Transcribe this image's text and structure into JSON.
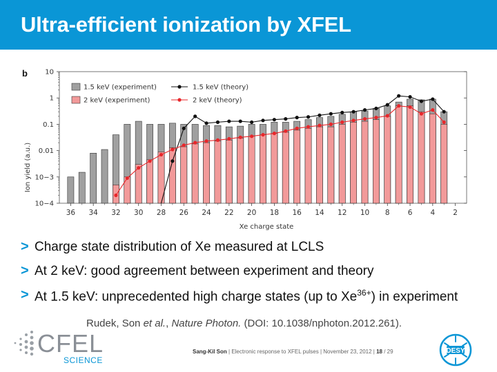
{
  "title": "Ultra-efficient ionization by XFEL",
  "chart_data": {
    "type": "bar",
    "panel_label": "b",
    "ylabel": "Ion yield (a.u.)",
    "xlabel": "Xe charge state",
    "yscale": "log",
    "ylim": [
      0.0001,
      10
    ],
    "xlim": [
      37,
      1
    ],
    "y_ticks": [
      0.0001,
      0.001,
      0.01,
      0.1,
      1,
      10
    ],
    "y_tick_labels": [
      "10−4",
      "10−3",
      "0.01",
      "0.1",
      "1",
      "10"
    ],
    "x_ticks": [
      36,
      34,
      32,
      30,
      28,
      26,
      24,
      22,
      20,
      18,
      16,
      14,
      12,
      10,
      8,
      6,
      4,
      2
    ],
    "legend_position": "top-left",
    "colors": {
      "exp_1_5": "#a0a0a0",
      "exp_2": "#f29a9a",
      "theory_1_5": "#111111",
      "theory_2": "#e8272b"
    },
    "series": [
      {
        "name": "1.5 keV (experiment)",
        "kind": "bar",
        "x": [
          36,
          35,
          34,
          33,
          32,
          31,
          30,
          29,
          28,
          27,
          26,
          25,
          24,
          23,
          22,
          21,
          20,
          19,
          18,
          17,
          16,
          15,
          14,
          13,
          12,
          11,
          10,
          9,
          8,
          7,
          6,
          5,
          4,
          3
        ],
        "values": [
          0.001,
          0.0015,
          0.008,
          0.011,
          0.04,
          0.1,
          0.13,
          0.1,
          0.1,
          0.11,
          0.1,
          0.1,
          0.09,
          0.09,
          0.08,
          0.085,
          0.1,
          0.1,
          0.12,
          0.12,
          0.13,
          0.15,
          0.18,
          0.2,
          0.24,
          0.3,
          0.32,
          0.4,
          0.5,
          0.7,
          0.9,
          0.85,
          0.9,
          0.3
        ]
      },
      {
        "name": "2 keV (experiment)",
        "kind": "bar",
        "x": [
          32,
          31,
          30,
          29,
          28,
          27,
          26,
          25,
          24,
          23,
          22,
          21,
          20,
          19,
          18,
          17,
          16,
          15,
          14,
          13,
          12,
          11,
          10,
          9,
          8,
          7,
          6,
          5,
          4,
          3
        ],
        "values": [
          0.0005,
          0.001,
          0.003,
          0.0045,
          0.009,
          0.013,
          0.014,
          0.018,
          0.02,
          0.023,
          0.025,
          0.03,
          0.035,
          0.04,
          0.045,
          0.05,
          0.06,
          0.07,
          0.08,
          0.08,
          0.1,
          0.12,
          0.13,
          0.15,
          0.2,
          0.5,
          0.5,
          0.3,
          0.25,
          0.1
        ]
      },
      {
        "name": "1.5 keV (theory)",
        "kind": "line",
        "x": [
          28,
          27,
          26,
          25,
          24,
          23,
          22,
          21,
          20,
          19,
          18,
          17,
          16,
          15,
          14,
          13,
          12,
          11,
          10,
          9,
          8,
          7,
          6,
          5,
          4,
          3
        ],
        "values": [
          0.0001,
          0.004,
          0.07,
          0.2,
          0.11,
          0.12,
          0.13,
          0.13,
          0.12,
          0.14,
          0.15,
          0.16,
          0.18,
          0.19,
          0.22,
          0.25,
          0.28,
          0.3,
          0.35,
          0.4,
          0.55,
          1.2,
          1.1,
          0.75,
          0.9,
          0.3
        ]
      },
      {
        "name": "2 keV (theory)",
        "kind": "line",
        "x": [
          32,
          31,
          30,
          29,
          28,
          27,
          26,
          25,
          24,
          23,
          22,
          21,
          20,
          19,
          18,
          17,
          16,
          15,
          14,
          13,
          12,
          11,
          10,
          9,
          8,
          7,
          6,
          5,
          4,
          3
        ],
        "values": [
          0.0002,
          0.0009,
          0.0022,
          0.004,
          0.007,
          0.011,
          0.016,
          0.02,
          0.023,
          0.025,
          0.028,
          0.032,
          0.035,
          0.04,
          0.045,
          0.055,
          0.07,
          0.08,
          0.09,
          0.1,
          0.12,
          0.14,
          0.16,
          0.18,
          0.21,
          0.5,
          0.45,
          0.25,
          0.35,
          0.12
        ]
      }
    ]
  },
  "bullets": {
    "b1": "Charge state distribution of Xe measured at LCLS",
    "b2": "At 2 keV: good agreement between experiment and theory",
    "b3_pre": "At 1.5 keV: unprecedented high charge states (up to Xe",
    "b3_sup": "36+",
    "b3_post": ") in experiment"
  },
  "bullet_marker": ">",
  "citation": {
    "authors": "Rudek, Son ",
    "etal": "et al.",
    "sep": ", ",
    "journal": "Nature Photon.",
    "doi": " (DOI: 10.1038/nphoton.2012.261)."
  },
  "footer": {
    "logo_main": "CFEL",
    "logo_sub": "SCIENCE",
    "presenter": "Sang-Kil Son",
    "talk": "Electronic response to XFEL pulses",
    "date": "November 23, 2012",
    "page": "18",
    "total": "29",
    "desy": "DESY"
  }
}
